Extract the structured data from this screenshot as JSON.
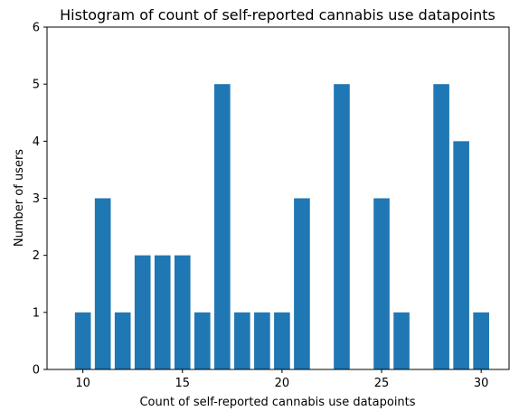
{
  "chart_data": {
    "type": "bar",
    "title": "Histogram of count of self-reported cannabis use datapoints",
    "xlabel": "Count of self-reported cannabis use datapoints",
    "ylabel": "Number of users",
    "x": [
      10,
      11,
      12,
      13,
      14,
      15,
      16,
      17,
      18,
      19,
      20,
      21,
      23,
      25,
      26,
      28,
      29,
      30
    ],
    "values": [
      1,
      3,
      1,
      2,
      2,
      2,
      1,
      5,
      1,
      1,
      1,
      3,
      5,
      3,
      1,
      5,
      4,
      1
    ],
    "xlim": [
      8.2,
      31.4
    ],
    "ylim": [
      0,
      6
    ],
    "xticks": [
      10,
      15,
      20,
      25,
      30
    ],
    "yticks": [
      0,
      1,
      2,
      3,
      4,
      5,
      6
    ],
    "bar_color": "#1f77b4",
    "grid": false,
    "legend": "none"
  }
}
